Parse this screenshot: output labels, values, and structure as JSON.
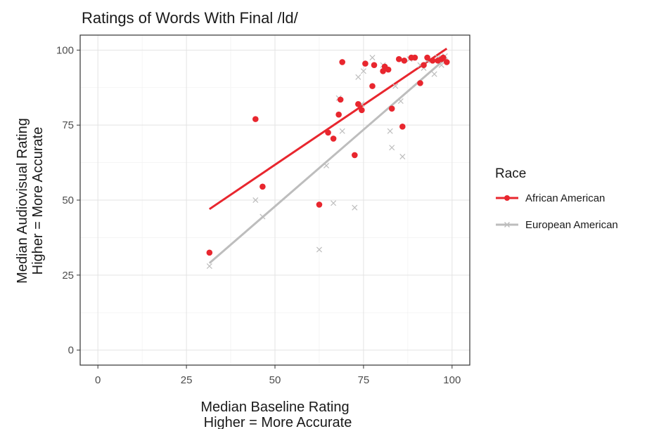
{
  "chart_data": {
    "type": "scatter",
    "title": "Ratings of Words With Final /ld/",
    "xlabel": [
      "Median Baseline Rating",
      "Higher = More Accurate"
    ],
    "ylabel": [
      "Median Audiovisual Rating",
      "Higher = More Accurate"
    ],
    "xlim": [
      -5,
      105
    ],
    "ylim": [
      -5,
      105
    ],
    "xticks": [
      0,
      25,
      50,
      75,
      100
    ],
    "yticks": [
      0,
      25,
      50,
      75,
      100
    ],
    "grid": true,
    "legend": {
      "title": "Race",
      "position": "right"
    },
    "series": [
      {
        "name": "African American",
        "color": "#e8262e",
        "marker": "circle",
        "points": [
          [
            31.5,
            32.5
          ],
          [
            44.5,
            77
          ],
          [
            46.5,
            54.5
          ],
          [
            62.5,
            48.5
          ],
          [
            65,
            72.5
          ],
          [
            66.5,
            70.5
          ],
          [
            68,
            78.5
          ],
          [
            68.5,
            83.5
          ],
          [
            69,
            96
          ],
          [
            72.5,
            65
          ],
          [
            73.5,
            82
          ],
          [
            74.5,
            80
          ],
          [
            75.5,
            95.5
          ],
          [
            77.5,
            88
          ],
          [
            78,
            95
          ],
          [
            80.5,
            93
          ],
          [
            81,
            94.5
          ],
          [
            82,
            93.5
          ],
          [
            83,
            80.5
          ],
          [
            85,
            97
          ],
          [
            86,
            74.5
          ],
          [
            86.5,
            96.5
          ],
          [
            88.5,
            97.5
          ],
          [
            89.5,
            97.5
          ],
          [
            91,
            89
          ],
          [
            92,
            95
          ],
          [
            93,
            97.5
          ],
          [
            94.5,
            96.5
          ],
          [
            96,
            96.5
          ],
          [
            97,
            97
          ],
          [
            97.5,
            97.5
          ],
          [
            98.5,
            96
          ]
        ],
        "fit": [
          [
            31.5,
            47
          ],
          [
            98.5,
            100.5
          ]
        ]
      },
      {
        "name": "European American",
        "color": "#bdbdbd",
        "marker": "x",
        "points": [
          [
            31.5,
            28
          ],
          [
            44.5,
            50
          ],
          [
            46.5,
            44.5
          ],
          [
            62.5,
            33.5
          ],
          [
            64.5,
            61.5
          ],
          [
            66.5,
            49
          ],
          [
            68,
            84
          ],
          [
            69,
            73
          ],
          [
            72.5,
            47.5
          ],
          [
            73.5,
            91
          ],
          [
            74.5,
            82
          ],
          [
            75,
            93
          ],
          [
            77.5,
            97.5
          ],
          [
            80.5,
            95
          ],
          [
            82.5,
            73
          ],
          [
            83,
            67.5
          ],
          [
            84,
            88
          ],
          [
            85.5,
            83
          ],
          [
            86,
            64.5
          ],
          [
            88,
            97
          ],
          [
            91,
            95
          ],
          [
            92,
            94
          ],
          [
            93,
            96.5
          ],
          [
            95,
            92
          ],
          [
            96,
            97.5
          ],
          [
            97,
            95
          ],
          [
            98,
            98
          ]
        ],
        "fit": [
          [
            31.5,
            29
          ],
          [
            98.5,
            97.5
          ]
        ]
      }
    ]
  }
}
